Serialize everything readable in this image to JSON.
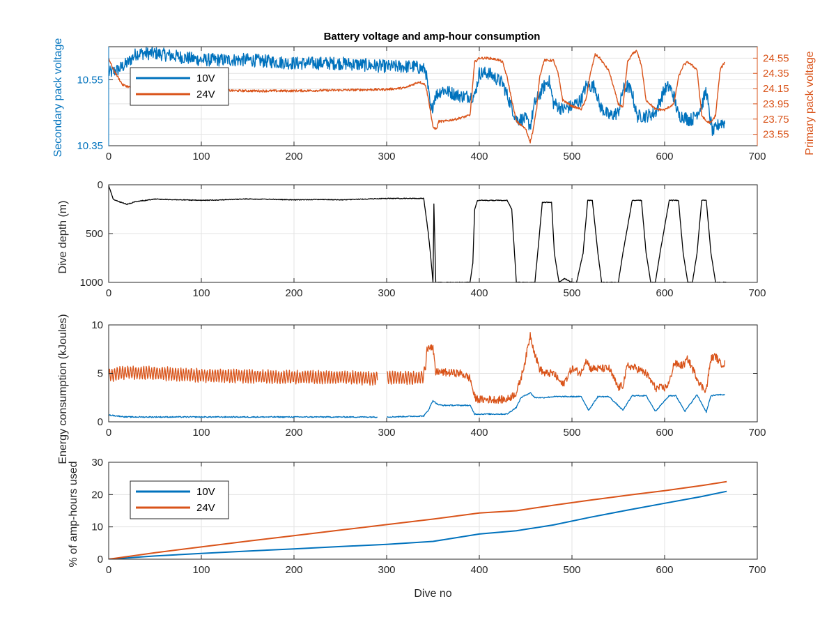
{
  "figure": {
    "title": "Battery voltage and amp-hour consumption",
    "colors": {
      "blue": "#0072BD",
      "orange": "#D95319",
      "black": "#000000",
      "grid": "#e3e3e3"
    }
  },
  "chart_data": [
    {
      "type": "line",
      "title": "Battery voltage and amp-hour consumption",
      "xlabel": "",
      "ylabel": "Secondary pack voltage",
      "y2label": "Primary pack voltage",
      "xlim": [
        0,
        700
      ],
      "ylim": [
        10.35,
        10.65
      ],
      "y2lim": [
        23.4,
        24.7
      ],
      "xticks": [
        0,
        100,
        200,
        300,
        400,
        500,
        600,
        700
      ],
      "yticks": [
        10.35,
        10.55
      ],
      "ytick_labels": [
        "10.35",
        "10.55"
      ],
      "y2ticks": [
        23.55,
        23.75,
        23.95,
        24.15,
        24.35,
        24.55
      ],
      "y2tick_labels": [
        "23.55",
        "23.75",
        "23.95",
        "24.15",
        "24.35",
        "24.55"
      ],
      "grid": true,
      "legend": {
        "position": "top-left",
        "entries": [
          "10V",
          "24V"
        ]
      },
      "series": [
        {
          "name": "10V",
          "axis": "left",
          "color": "#0072BD",
          "noise": 0.02,
          "x": [
            0,
            10,
            20,
            30,
            50,
            100,
            150,
            200,
            250,
            300,
            330,
            342,
            348,
            352,
            360,
            380,
            395,
            400,
            410,
            420,
            425,
            440,
            450,
            455,
            460,
            470,
            475,
            480,
            490,
            500,
            510,
            515,
            525,
            530,
            540,
            550,
            555,
            560,
            565,
            570,
            580,
            590,
            600,
            605,
            610,
            615,
            620,
            625,
            630,
            640,
            645,
            648,
            652,
            660,
            665
          ],
          "y": [
            10.57,
            10.58,
            10.6,
            10.63,
            10.63,
            10.61,
            10.61,
            10.6,
            10.6,
            10.59,
            10.59,
            10.58,
            10.45,
            10.5,
            10.52,
            10.5,
            10.5,
            10.57,
            10.57,
            10.55,
            10.54,
            10.43,
            10.43,
            10.41,
            10.48,
            10.53,
            10.55,
            10.48,
            10.46,
            10.47,
            10.49,
            10.53,
            10.53,
            10.47,
            10.44,
            10.45,
            10.52,
            10.53,
            10.51,
            10.44,
            10.44,
            10.45,
            10.52,
            10.53,
            10.5,
            10.44,
            10.44,
            10.43,
            10.43,
            10.47,
            10.52,
            10.45,
            10.39,
            10.42,
            10.42
          ]
        },
        {
          "name": "24V",
          "axis": "right",
          "color": "#D95319",
          "noise": 0.015,
          "x": [
            0,
            5,
            15,
            30,
            60,
            100,
            150,
            200,
            250,
            300,
            320,
            335,
            342,
            346,
            350,
            354,
            356,
            362,
            375,
            390,
            395,
            400,
            410,
            420,
            425,
            430,
            435,
            440,
            450,
            455,
            458,
            462,
            465,
            470,
            480,
            485,
            490,
            500,
            510,
            515,
            520,
            525,
            530,
            540,
            550,
            555,
            560,
            565,
            570,
            575,
            580,
            590,
            600,
            610,
            615,
            620,
            625,
            630,
            635,
            640,
            645,
            650,
            655,
            660,
            665
          ],
          "y": [
            24.55,
            24.4,
            24.2,
            24.14,
            24.13,
            24.13,
            24.12,
            24.12,
            24.13,
            24.14,
            24.16,
            24.24,
            24.2,
            23.95,
            23.64,
            23.62,
            23.72,
            23.72,
            23.75,
            23.8,
            24.5,
            24.55,
            24.55,
            24.53,
            24.5,
            24.3,
            24.0,
            23.72,
            23.62,
            23.45,
            23.6,
            23.9,
            24.3,
            24.52,
            24.52,
            24.35,
            24.0,
            23.92,
            23.88,
            24.0,
            24.35,
            24.6,
            24.55,
            24.38,
            23.95,
            23.9,
            24.5,
            24.6,
            24.65,
            24.45,
            24.0,
            23.88,
            23.87,
            23.95,
            24.3,
            24.45,
            24.5,
            24.45,
            24.4,
            23.8,
            23.72,
            23.7,
            23.8,
            24.4,
            24.5
          ]
        }
      ]
    },
    {
      "type": "line",
      "xlabel": "",
      "ylabel": "Dive depth (m)",
      "xlim": [
        0,
        700
      ],
      "ylim": [
        0,
        1000
      ],
      "y_reversed": true,
      "xticks": [
        0,
        100,
        200,
        300,
        400,
        500,
        600,
        700
      ],
      "yticks": [
        0,
        500,
        1000
      ],
      "grid": true,
      "series": [
        {
          "color": "#000000",
          "noise": 4,
          "x": [
            0,
            5,
            10,
            20,
            30,
            40,
            50,
            60,
            80,
            100,
            120,
            150,
            180,
            200,
            230,
            250,
            280,
            300,
            330,
            340,
            345,
            348,
            350,
            351,
            353,
            355,
            360,
            380,
            390,
            393,
            395,
            398,
            405,
            420,
            430,
            435,
            440,
            445,
            460,
            463,
            468,
            478,
            481,
            486,
            492,
            500,
            505,
            512,
            517,
            522,
            528,
            532,
            540,
            550,
            555,
            565,
            570,
            575,
            580,
            585,
            590,
            595,
            605,
            610,
            615,
            620,
            625,
            630,
            635,
            640,
            645,
            650,
            655,
            660,
            667
          ],
          "y": [
            10,
            150,
            170,
            200,
            170,
            160,
            145,
            150,
            155,
            160,
            155,
            145,
            150,
            155,
            150,
            155,
            145,
            140,
            140,
            140,
            500,
            780,
            1000,
            200,
            1000,
            1000,
            1000,
            1000,
            1000,
            800,
            250,
            160,
            160,
            160,
            160,
            250,
            1000,
            1000,
            1000,
            700,
            180,
            180,
            700,
            1000,
            960,
            1000,
            1000,
            700,
            160,
            160,
            700,
            1000,
            1000,
            1000,
            700,
            160,
            160,
            160,
            700,
            1000,
            1000,
            700,
            160,
            160,
            160,
            700,
            1000,
            1000,
            700,
            160,
            160,
            700,
            1000,
            1000,
            1000
          ]
        }
      ]
    },
    {
      "type": "line",
      "xlabel": "",
      "ylabel": "Energy consumption (kJoules)",
      "xlim": [
        0,
        700
      ],
      "ylim": [
        0,
        10
      ],
      "xticks": [
        0,
        100,
        200,
        300,
        400,
        500,
        600,
        700
      ],
      "yticks": [
        0,
        5,
        10
      ],
      "grid": true,
      "series": [
        {
          "name": "24V",
          "color": "#D95319",
          "noise": 0.4,
          "oscillate": true,
          "x": [
            0,
            10,
            20,
            50,
            100,
            150,
            200,
            250,
            290,
            295,
            300,
            330,
            340,
            345,
            350,
            353,
            355,
            360,
            380,
            390,
            395,
            400,
            420,
            430,
            440,
            445,
            450,
            455,
            460,
            465,
            470,
            480,
            490,
            500,
            510,
            515,
            520,
            530,
            540,
            550,
            555,
            560,
            570,
            580,
            590,
            600,
            605,
            610,
            620,
            625,
            630,
            640,
            645,
            650,
            655,
            660,
            665
          ],
          "y": [
            4.8,
            5.0,
            5.1,
            5.0,
            4.8,
            4.7,
            4.6,
            4.6,
            4.5,
            null,
            4.6,
            4.5,
            4.7,
            8.0,
            7.5,
            5.0,
            5.2,
            5.1,
            5.0,
            4.5,
            2.5,
            2.3,
            2.3,
            2.3,
            3.0,
            4.5,
            6.5,
            9.0,
            7.0,
            5.5,
            5.0,
            5.0,
            3.8,
            5.5,
            5.0,
            6.5,
            5.5,
            5.5,
            5.5,
            3.5,
            3.8,
            5.8,
            5.5,
            5.0,
            3.5,
            3.5,
            4.0,
            6.0,
            5.8,
            6.5,
            5.5,
            3.6,
            3.3,
            6.5,
            6.8,
            6.0,
            6.0
          ]
        },
        {
          "name": "10V",
          "color": "#0072BD",
          "noise": 0.06,
          "x": [
            0,
            10,
            20,
            50,
            100,
            200,
            290,
            295,
            300,
            340,
            345,
            350,
            355,
            360,
            390,
            395,
            430,
            440,
            445,
            455,
            460,
            470,
            480,
            485,
            510,
            518,
            528,
            540,
            555,
            565,
            580,
            590,
            605,
            612,
            622,
            635,
            645,
            650,
            660,
            665
          ],
          "y": [
            0.7,
            0.6,
            0.5,
            0.5,
            0.5,
            0.5,
            0.5,
            null,
            0.5,
            0.6,
            1.2,
            2.2,
            1.8,
            1.7,
            1.7,
            0.8,
            0.8,
            1.5,
            2.5,
            3.0,
            2.5,
            2.5,
            2.6,
            2.6,
            2.6,
            1.2,
            2.6,
            2.6,
            1.2,
            2.7,
            2.7,
            1.1,
            2.7,
            2.7,
            1.1,
            2.8,
            1.0,
            2.7,
            2.8,
            2.8
          ]
        }
      ]
    },
    {
      "type": "line",
      "xlabel": "Dive no",
      "ylabel": "% of amp-hours used",
      "xlim": [
        0,
        700
      ],
      "ylim": [
        0,
        30
      ],
      "xticks": [
        0,
        100,
        200,
        300,
        400,
        500,
        600,
        700
      ],
      "yticks": [
        0,
        10,
        20,
        30
      ],
      "grid": true,
      "legend": {
        "position": "top-left",
        "entries": [
          "10V",
          "24V"
        ]
      },
      "series": [
        {
          "name": "10V",
          "color": "#0072BD",
          "x": [
            0,
            50,
            100,
            150,
            200,
            250,
            300,
            350,
            400,
            440,
            480,
            520,
            560,
            600,
            640,
            667
          ],
          "y": [
            0,
            1.0,
            1.8,
            2.5,
            3.2,
            3.9,
            4.6,
            5.5,
            7.8,
            8.8,
            10.6,
            13.0,
            15.2,
            17.3,
            19.4,
            21.0
          ]
        },
        {
          "name": "24V",
          "color": "#D95319",
          "x": [
            0,
            50,
            100,
            150,
            200,
            250,
            300,
            350,
            400,
            440,
            480,
            520,
            560,
            600,
            640,
            667
          ],
          "y": [
            0,
            2.0,
            3.8,
            5.6,
            7.3,
            9.0,
            10.7,
            12.4,
            14.3,
            15.0,
            16.7,
            18.3,
            19.8,
            21.2,
            22.8,
            24.0
          ]
        }
      ]
    }
  ]
}
